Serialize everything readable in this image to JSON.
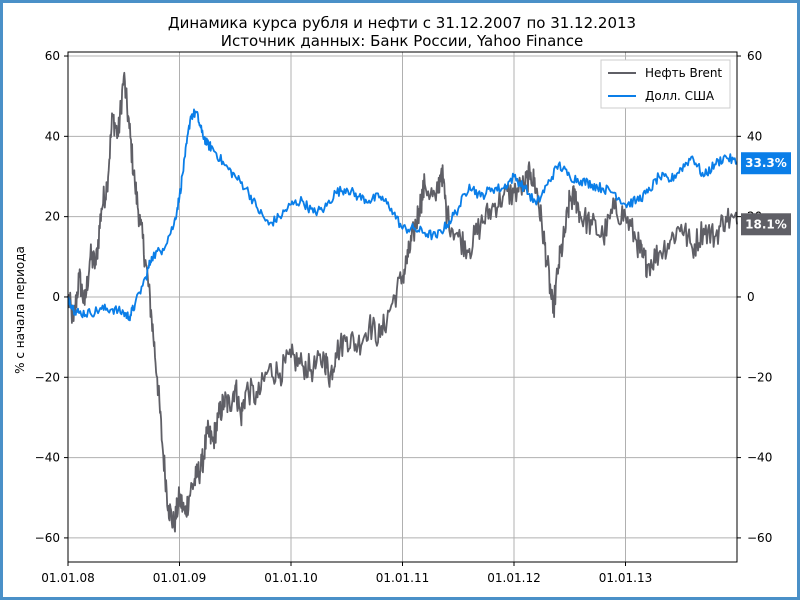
{
  "chart_data": {
    "type": "line",
    "title": "Динамика курса рубля и нефти с 31.12.2007 по 31.12.2013",
    "subtitle": "Источник данных: Банк России, Yahoo Finance",
    "ylabel": "% с начала периода",
    "xlabel": "",
    "ylim": [
      -66,
      61
    ],
    "y_ticks": [
      -60,
      -40,
      -20,
      0,
      20,
      40,
      60
    ],
    "x_range_years": [
      0,
      6.0
    ],
    "x_ticks": [
      {
        "label": "01.01.08",
        "x": 0
      },
      {
        "label": "01.01.09",
        "x": 1
      },
      {
        "label": "01.01.10",
        "x": 2
      },
      {
        "label": "01.01.11",
        "x": 3
      },
      {
        "label": "01.01.12",
        "x": 4
      },
      {
        "label": "01.01.13",
        "x": 5
      }
    ],
    "grid": true,
    "legend_position": "top-right",
    "x_unit": "years since 31.12.2007",
    "series": [
      {
        "name": "Нефть Brent",
        "color": "#5f5f66",
        "points": [
          [
            0,
            0
          ],
          [
            0.05,
            -6
          ],
          [
            0.1,
            5
          ],
          [
            0.15,
            -2
          ],
          [
            0.2,
            10
          ],
          [
            0.25,
            8
          ],
          [
            0.3,
            22
          ],
          [
            0.35,
            28
          ],
          [
            0.4,
            45
          ],
          [
            0.45,
            40
          ],
          [
            0.5,
            55
          ],
          [
            0.55,
            42
          ],
          [
            0.6,
            28
          ],
          [
            0.65,
            18
          ],
          [
            0.7,
            8
          ],
          [
            0.75,
            -5
          ],
          [
            0.8,
            -20
          ],
          [
            0.85,
            -38
          ],
          [
            0.9,
            -52
          ],
          [
            0.95,
            -57
          ],
          [
            1.0,
            -50
          ],
          [
            1.05,
            -54
          ],
          [
            1.1,
            -48
          ],
          [
            1.15,
            -45
          ],
          [
            1.2,
            -42
          ],
          [
            1.25,
            -34
          ],
          [
            1.3,
            -36
          ],
          [
            1.35,
            -30
          ],
          [
            1.4,
            -26
          ],
          [
            1.45,
            -27
          ],
          [
            1.5,
            -22
          ],
          [
            1.55,
            -30
          ],
          [
            1.6,
            -23
          ],
          [
            1.7,
            -25
          ],
          [
            1.8,
            -18
          ],
          [
            1.9,
            -19
          ],
          [
            2.0,
            -15
          ],
          [
            2.1,
            -17
          ],
          [
            2.2,
            -18
          ],
          [
            2.3,
            -15
          ],
          [
            2.35,
            -20
          ],
          [
            2.4,
            -14
          ],
          [
            2.5,
            -10
          ],
          [
            2.6,
            -12
          ],
          [
            2.7,
            -7
          ],
          [
            2.8,
            -10
          ],
          [
            2.9,
            -2
          ],
          [
            3.0,
            5
          ],
          [
            3.05,
            10
          ],
          [
            3.1,
            16
          ],
          [
            3.15,
            22
          ],
          [
            3.2,
            28
          ],
          [
            3.3,
            24
          ],
          [
            3.35,
            32
          ],
          [
            3.4,
            20
          ],
          [
            3.5,
            15
          ],
          [
            3.6,
            12
          ],
          [
            3.7,
            18
          ],
          [
            3.8,
            22
          ],
          [
            3.9,
            25
          ],
          [
            4.0,
            26
          ],
          [
            4.1,
            28
          ],
          [
            4.15,
            31
          ],
          [
            4.2,
            27
          ],
          [
            4.25,
            18
          ],
          [
            4.3,
            8
          ],
          [
            4.35,
            -4
          ],
          [
            4.4,
            8
          ],
          [
            4.45,
            15
          ],
          [
            4.5,
            24
          ],
          [
            4.55,
            25
          ],
          [
            4.6,
            20
          ],
          [
            4.7,
            18
          ],
          [
            4.8,
            15
          ],
          [
            4.9,
            22
          ],
          [
            5.0,
            20
          ],
          [
            5.1,
            14
          ],
          [
            5.15,
            10
          ],
          [
            5.2,
            8
          ],
          [
            5.3,
            11
          ],
          [
            5.4,
            14
          ],
          [
            5.5,
            18
          ],
          [
            5.6,
            12
          ],
          [
            5.7,
            17
          ],
          [
            5.8,
            15
          ],
          [
            5.9,
            20
          ],
          [
            6.0,
            18.1
          ]
        ]
      },
      {
        "name": "Долл. США",
        "color": "#0a7ee8",
        "points": [
          [
            0,
            0
          ],
          [
            0.05,
            -3
          ],
          [
            0.1,
            -4
          ],
          [
            0.2,
            -4
          ],
          [
            0.3,
            -3
          ],
          [
            0.4,
            -3
          ],
          [
            0.5,
            -4
          ],
          [
            0.55,
            -5
          ],
          [
            0.6,
            -2
          ],
          [
            0.7,
            5
          ],
          [
            0.75,
            10
          ],
          [
            0.85,
            12
          ],
          [
            0.95,
            18
          ],
          [
            1.0,
            25
          ],
          [
            1.05,
            35
          ],
          [
            1.1,
            45
          ],
          [
            1.15,
            46
          ],
          [
            1.2,
            41
          ],
          [
            1.25,
            38
          ],
          [
            1.3,
            37
          ],
          [
            1.4,
            33
          ],
          [
            1.5,
            30
          ],
          [
            1.6,
            27
          ],
          [
            1.7,
            22
          ],
          [
            1.8,
            18
          ],
          [
            1.9,
            20
          ],
          [
            2.0,
            23
          ],
          [
            2.1,
            24
          ],
          [
            2.2,
            21
          ],
          [
            2.3,
            22
          ],
          [
            2.4,
            26
          ],
          [
            2.5,
            27
          ],
          [
            2.6,
            25
          ],
          [
            2.7,
            24
          ],
          [
            2.8,
            25
          ],
          [
            2.9,
            22
          ],
          [
            3.0,
            17
          ],
          [
            3.1,
            17
          ],
          [
            3.2,
            16
          ],
          [
            3.3,
            15
          ],
          [
            3.4,
            18
          ],
          [
            3.5,
            22
          ],
          [
            3.6,
            28
          ],
          [
            3.7,
            25
          ],
          [
            3.8,
            27
          ],
          [
            3.9,
            27
          ],
          [
            4.0,
            30
          ],
          [
            4.1,
            27
          ],
          [
            4.2,
            23
          ],
          [
            4.3,
            28
          ],
          [
            4.4,
            33
          ],
          [
            4.5,
            30
          ],
          [
            4.6,
            29
          ],
          [
            4.7,
            28
          ],
          [
            4.8,
            27
          ],
          [
            4.9,
            26
          ],
          [
            5.0,
            23
          ],
          [
            5.1,
            24
          ],
          [
            5.2,
            26
          ],
          [
            5.3,
            30
          ],
          [
            5.4,
            29
          ],
          [
            5.5,
            32
          ],
          [
            5.6,
            35
          ],
          [
            5.7,
            30
          ],
          [
            5.8,
            33
          ],
          [
            5.9,
            35
          ],
          [
            6.0,
            33.3
          ]
        ]
      }
    ],
    "end_badges": [
      {
        "series": "Долл. США",
        "label": "33.3%",
        "value": 33.3,
        "color": "#0a7ee8"
      },
      {
        "series": "Нефть Brent",
        "label": "18.1%",
        "value": 18.1,
        "color": "#5f5f66"
      }
    ]
  }
}
